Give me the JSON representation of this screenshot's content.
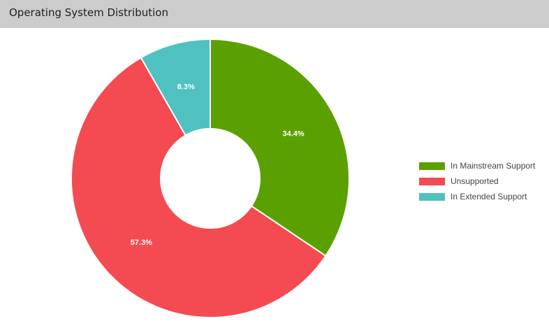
{
  "panel": {
    "title": "Operating System Distribution"
  },
  "chart_data": {
    "type": "pie",
    "donut": true,
    "legend_position": "right",
    "slices": [
      {
        "label": "In Mainstream Support",
        "value": 34.4,
        "display": "34.4%",
        "color": "#5aa000"
      },
      {
        "label": "Unsupported",
        "value": 57.3,
        "display": "57.3%",
        "color": "#f44a52"
      },
      {
        "label": "In Extended Support",
        "value": 8.3,
        "display": "8.3%",
        "color": "#4fc1c0"
      }
    ]
  }
}
